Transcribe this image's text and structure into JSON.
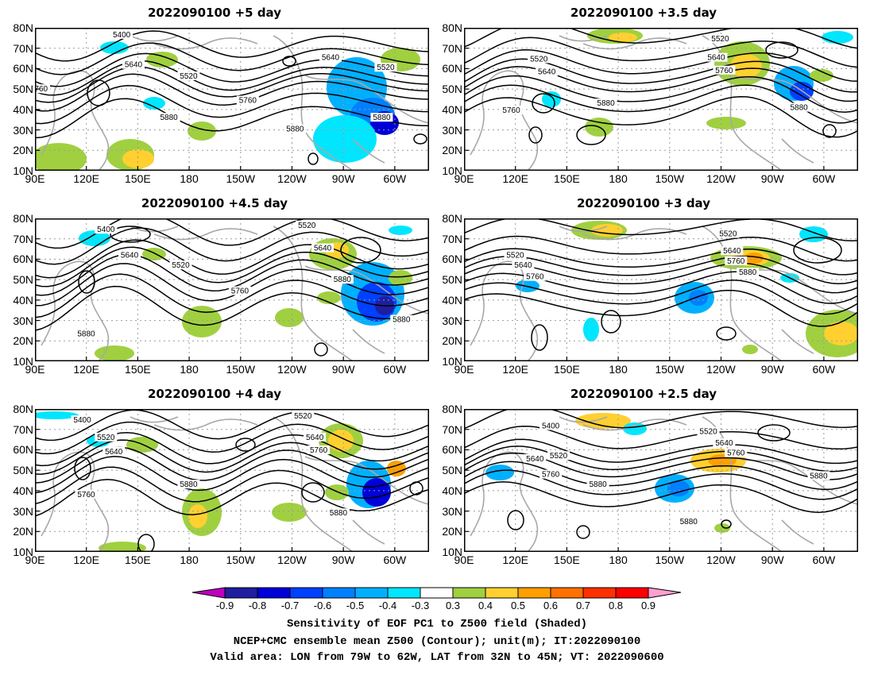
{
  "panels": [
    {
      "title": "2022090100 +5 day"
    },
    {
      "title": "2022090100 +3.5 day"
    },
    {
      "title": "2022090100 +4.5 day"
    },
    {
      "title": "2022090100 +3 day"
    },
    {
      "title": "2022090100 +4 day"
    },
    {
      "title": "2022090100 +2.5 day"
    }
  ],
  "map": {
    "lat_ticks": [
      "80N",
      "70N",
      "60N",
      "50N",
      "40N",
      "30N",
      "20N",
      "10N"
    ],
    "lon_ticks": [
      "90E",
      "120E",
      "150E",
      "180",
      "150W",
      "120W",
      "90W",
      "60W"
    ],
    "lon_range": [
      90,
      320
    ],
    "lat_range": [
      10,
      80
    ],
    "contour_color": "#000000",
    "coast_color": "#a8a8a8"
  },
  "contour_labels": [
    [
      "5400",
      "5640",
      "5520",
      "5760",
      "5880",
      "5640",
      "5520",
      "5880",
      "5880",
      "5760"
    ],
    [
      "5520",
      "5640",
      "5760",
      "5880",
      "5520",
      "5640",
      "5760",
      "5880"
    ],
    [
      "5400",
      "5640",
      "5520",
      "5760",
      "5880",
      "5520",
      "5640",
      "5880",
      "5880"
    ],
    [
      "5520",
      "5640",
      "5760",
      "5520",
      "5640",
      "5760",
      "5880"
    ],
    [
      "5400",
      "5520",
      "5640",
      "5760",
      "5880",
      "5520",
      "5640",
      "5760",
      "5880"
    ],
    [
      "5400",
      "5520",
      "5640",
      "5760",
      "5880",
      "5520",
      "5640",
      "5760",
      "5880",
      "5880"
    ]
  ],
  "colorbar": {
    "labels": [
      "-0.9",
      "-0.8",
      "-0.7",
      "-0.6",
      "-0.5",
      "-0.4",
      "-0.3",
      "0.3",
      "0.4",
      "0.5",
      "0.6",
      "0.7",
      "0.8",
      "0.9"
    ],
    "colors": [
      "#c000c0",
      "#1e1ea0",
      "#0000d8",
      "#0040ff",
      "#0080ff",
      "#00b0ff",
      "#00e6ff",
      "#ffffff",
      "#a0d040",
      "#ffd030",
      "#ffa000",
      "#ff7000",
      "#ff3000",
      "#ff0000",
      "#ffa0d0"
    ]
  },
  "caption": {
    "line1": "Sensitivity of EOF PC1 to Z500 field (Shaded)",
    "line2": "NCEP+CMC ensemble mean Z500 (Contour); unit(m); IT:2022090100",
    "line3": "Valid area: LON from 79W to 62W, LAT from 32N to 45N; VT: 2022090600"
  }
}
